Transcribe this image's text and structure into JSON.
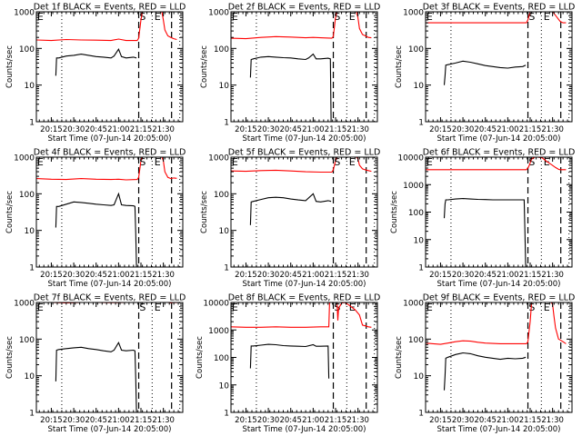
{
  "figure": {
    "ylabel": "Counts/sec",
    "xlabel": "Start Time (07-Jun-14 20:05:00)",
    "time_axis_minutes_from_start": [
      0,
      98
    ],
    "x_tick_labels": [
      "20:15",
      "20:30",
      "20:45",
      "21:00",
      "21:15",
      "21:30"
    ],
    "x_tick_minutes": [
      10,
      25,
      40,
      55,
      70,
      85
    ],
    "colors": {
      "events": "#000000",
      "lld": "#ff0000",
      "axes": "#000000"
    },
    "markers": {
      "dashed_minutes": [
        68.5,
        90.5
      ],
      "dotted_minutes": [
        17,
        77.5,
        96
      ],
      "labels": [
        {
          "text": "E",
          "minute": 0.5
        },
        {
          "text": "S",
          "minute": 69
        },
        {
          "text": "E",
          "minute": 79
        }
      ]
    }
  },
  "chart_data": [
    {
      "type": "line",
      "title": "Det 1f BLACK = Events, RED = LLD",
      "xlabel": "Start Time (07-Jun-14 20:05:00)",
      "ylabel": "Counts/sec",
      "yscale": "log",
      "ylim": [
        1,
        1000
      ],
      "y_tick_labels": [
        "1",
        "10",
        "100",
        "1000"
      ],
      "series": [
        {
          "name": "LLD",
          "color": "#ff0000",
          "x": [
            0,
            10,
            20,
            30,
            40,
            50,
            55,
            60,
            67.5,
            68.5,
            70,
            71,
            84,
            85,
            86,
            88,
            90,
            92,
            94
          ],
          "y": [
            170,
            165,
            175,
            170,
            168,
            165,
            180,
            165,
            165,
            190,
            600,
            2000,
            2000,
            600,
            320,
            220,
            200,
            185,
            175
          ]
        },
        {
          "name": "Events",
          "color": "#000000",
          "x": [
            13,
            13.5,
            15,
            20,
            25,
            30,
            35,
            40,
            45,
            50,
            52,
            55,
            57,
            60,
            65,
            67
          ],
          "y": [
            18,
            55,
            55,
            62,
            65,
            70,
            65,
            60,
            58,
            55,
            62,
            95,
            60,
            55,
            58,
            55
          ]
        }
      ]
    },
    {
      "type": "line",
      "title": "Det 2f BLACK = Events, RED = LLD",
      "xlabel": "Start Time (07-Jun-14 20:05:00)",
      "ylabel": "Counts/sec",
      "yscale": "log",
      "ylim": [
        1,
        1000
      ],
      "y_tick_labels": [
        "1",
        "10",
        "100",
        "1000"
      ],
      "series": [
        {
          "name": "LLD",
          "color": "#ff0000",
          "x": [
            0,
            10,
            20,
            30,
            40,
            50,
            55,
            60,
            67.5,
            68.5,
            70,
            71,
            84,
            85,
            86,
            88,
            90,
            92,
            94
          ],
          "y": [
            190,
            185,
            200,
            210,
            205,
            195,
            200,
            195,
            190,
            210,
            700,
            2000,
            2000,
            700,
            350,
            240,
            220,
            200,
            195
          ]
        },
        {
          "name": "Events",
          "color": "#000000",
          "x": [
            13,
            13.5,
            15,
            20,
            25,
            30,
            35,
            40,
            45,
            50,
            52,
            55,
            57,
            60,
            65,
            66.5,
            67
          ],
          "y": [
            16,
            50,
            52,
            58,
            60,
            58,
            56,
            55,
            52,
            50,
            55,
            70,
            52,
            52,
            54,
            52,
            1
          ]
        }
      ]
    },
    {
      "type": "line",
      "title": "Det 3f BLACK = Events, RED = LLD",
      "xlabel": "Start Time (07-Jun-14 20:05:00)",
      "ylabel": "Counts/sec",
      "yscale": "log",
      "ylim": [
        1,
        1000
      ],
      "y_tick_labels": [
        "1",
        "10",
        "100",
        "1000"
      ],
      "series": [
        {
          "name": "LLD",
          "color": "#ff0000",
          "x": [
            0,
            10,
            20,
            30,
            40,
            50,
            60,
            67.5,
            68.5,
            70,
            71,
            84,
            85,
            86,
            88,
            90,
            92,
            94
          ],
          "y": [
            500,
            500,
            500,
            500,
            500,
            500,
            500,
            500,
            600,
            1000,
            2000,
            2000,
            1200,
            900,
            700,
            550,
            500,
            500
          ]
        },
        {
          "name": "Events",
          "color": "#000000",
          "x": [
            12.5,
            13,
            13.5,
            15,
            20,
            25,
            30,
            35,
            40,
            45,
            50,
            55,
            60,
            65,
            67
          ],
          "y": [
            10,
            18,
            35,
            36,
            40,
            45,
            42,
            38,
            34,
            32,
            30,
            29,
            31,
            32,
            35
          ]
        }
      ]
    },
    {
      "type": "line",
      "title": "Det 4f BLACK = Events, RED = LLD",
      "xlabel": "Start Time (07-Jun-14 20:05:00)",
      "ylabel": "Counts/sec",
      "yscale": "log",
      "ylim": [
        1,
        1000
      ],
      "y_tick_labels": [
        "1",
        "10",
        "100",
        "1000"
      ],
      "series": [
        {
          "name": "LLD",
          "color": "#ff0000",
          "x": [
            0,
            10,
            20,
            30,
            40,
            50,
            55,
            60,
            67.5,
            68.5,
            70,
            71,
            84,
            85,
            86,
            88,
            90,
            92,
            94
          ],
          "y": [
            260,
            250,
            245,
            260,
            250,
            245,
            250,
            240,
            245,
            280,
            800,
            2000,
            2000,
            800,
            400,
            280,
            260,
            270,
            265
          ]
        },
        {
          "name": "Events",
          "color": "#000000",
          "x": [
            13,
            13.5,
            15,
            20,
            25,
            30,
            35,
            40,
            45,
            50,
            52,
            55,
            57,
            60,
            65,
            66,
            66.5,
            67
          ],
          "y": [
            12,
            45,
            45,
            52,
            60,
            58,
            55,
            52,
            50,
            48,
            50,
            100,
            50,
            48,
            47,
            45,
            8,
            1
          ]
        }
      ]
    },
    {
      "type": "line",
      "title": "Det 5f BLACK = Events, RED = LLD",
      "xlabel": "Start Time (07-Jun-14 20:05:00)",
      "ylabel": "Counts/sec",
      "yscale": "log",
      "ylim": [
        1,
        1000
      ],
      "y_tick_labels": [
        "1",
        "10",
        "100",
        "1000"
      ],
      "series": [
        {
          "name": "LLD",
          "color": "#ff0000",
          "x": [
            0,
            10,
            20,
            30,
            40,
            50,
            60,
            67.5,
            68.5,
            70,
            71,
            84,
            85,
            86,
            88,
            90,
            92,
            94
          ],
          "y": [
            420,
            410,
            430,
            440,
            420,
            400,
            390,
            390,
            450,
            800,
            2000,
            2000,
            900,
            600,
            480,
            450,
            430,
            410
          ]
        },
        {
          "name": "Events",
          "color": "#000000",
          "x": [
            13,
            13.5,
            15,
            20,
            25,
            30,
            35,
            40,
            45,
            50,
            55,
            57,
            60,
            65,
            67
          ],
          "y": [
            14,
            60,
            62,
            70,
            78,
            80,
            78,
            72,
            68,
            65,
            100,
            62,
            60,
            65,
            62
          ]
        }
      ]
    },
    {
      "type": "line",
      "title": "Det 6f BLACK = Events, RED = LLD",
      "xlabel": "Start Time (07-Jun-14 20:05:00)",
      "ylabel": "Counts/sec",
      "yscale": "log",
      "ylim": [
        1,
        10000
      ],
      "y_tick_labels": [
        "1",
        "10",
        "100",
        "1000",
        "10000"
      ],
      "series": [
        {
          "name": "LLD",
          "color": "#ff0000",
          "x": [
            0,
            10,
            20,
            30,
            40,
            50,
            60,
            67.5,
            69,
            71,
            73,
            75,
            78,
            81,
            84,
            87,
            89,
            90,
            94
          ],
          "y": [
            3500,
            3500,
            3500,
            3500,
            3500,
            3500,
            3500,
            3500,
            4500,
            8500,
            11000,
            11500,
            9500,
            7000,
            5500,
            4200,
            3600,
            3500,
            3500
          ]
        },
        {
          "name": "Events",
          "color": "#000000",
          "x": [
            12.5,
            13,
            13.5,
            15,
            20,
            25,
            30,
            35,
            40,
            45,
            50,
            55,
            60,
            65,
            66,
            66.5,
            67
          ],
          "y": [
            60,
            200,
            280,
            280,
            300,
            310,
            300,
            290,
            285,
            280,
            280,
            280,
            280,
            280,
            280,
            15,
            1
          ]
        }
      ]
    },
    {
      "type": "line",
      "title": "Det 7f BLACK = Events, RED = LLD",
      "xlabel": "Start Time (07-Jun-14 20:05:00)",
      "ylabel": "Counts/sec",
      "yscale": "log",
      "ylim": [
        1,
        1000
      ],
      "y_tick_labels": [
        "1",
        "10",
        "100",
        "1000"
      ],
      "series": [
        {
          "name": "LLD",
          "color": "#ff0000",
          "x": [
            0,
            10,
            20,
            30,
            40,
            50,
            60,
            67.5,
            88,
            90,
            92,
            94
          ],
          "y": [
            1000,
            1000,
            980,
            1000,
            1000,
            990,
            1000,
            1000,
            1000,
            980,
            1000,
            990
          ]
        },
        {
          "name": "Events",
          "color": "#000000",
          "x": [
            13,
            13.5,
            15,
            20,
            25,
            30,
            35,
            40,
            45,
            50,
            52,
            55,
            57,
            60,
            65,
            66,
            66.5,
            67
          ],
          "y": [
            7,
            50,
            52,
            55,
            58,
            60,
            55,
            52,
            48,
            45,
            50,
            80,
            50,
            48,
            50,
            48,
            8,
            1
          ]
        }
      ]
    },
    {
      "type": "line",
      "title": "Det 8f BLACK = Events, RED = LLD",
      "xlabel": "Start Time (07-Jun-14 20:05:00)",
      "ylabel": "Counts/sec",
      "yscale": "log",
      "ylim": [
        1,
        10000
      ],
      "y_tick_labels": [
        "1",
        "10",
        "100",
        "1000",
        "10000"
      ],
      "series": [
        {
          "name": "LLD",
          "color": "#ff0000",
          "x": [
            0,
            10,
            20,
            30,
            40,
            50,
            60,
            65.5,
            66,
            68,
            71,
            71.5,
            72,
            74,
            76,
            79,
            83,
            86,
            88,
            90,
            92,
            94
          ],
          "y": [
            1300,
            1250,
            1250,
            1300,
            1250,
            1250,
            1300,
            1300,
            12000,
            12000,
            12000,
            2200,
            6000,
            9500,
            10500,
            8000,
            5500,
            3500,
            1500,
            1400,
            1300,
            1250
          ]
        },
        {
          "name": "Events",
          "color": "#000000",
          "x": [
            13,
            13.5,
            15,
            20,
            25,
            30,
            35,
            40,
            45,
            50,
            55,
            57,
            60,
            65,
            65.5
          ],
          "y": [
            40,
            260,
            260,
            280,
            300,
            290,
            270,
            260,
            255,
            250,
            290,
            255,
            255,
            260,
            17
          ]
        }
      ]
    },
    {
      "type": "line",
      "title": "Det 9f BLACK = Events, RED = LLD",
      "xlabel": "Start Time (07-Jun-14 20:05:00)",
      "ylabel": "Counts/sec",
      "yscale": "log",
      "ylim": [
        1,
        1000
      ],
      "y_tick_labels": [
        "1",
        "10",
        "100",
        "1000"
      ],
      "series": [
        {
          "name": "LLD",
          "color": "#ff0000",
          "x": [
            0,
            5,
            10,
            15,
            20,
            25,
            30,
            35,
            40,
            50,
            60,
            67.5,
            68.5,
            70,
            71,
            84,
            85,
            86,
            87,
            89,
            90,
            92,
            94
          ],
          "y": [
            78,
            75,
            72,
            78,
            85,
            90,
            88,
            82,
            78,
            75,
            75,
            75,
            85,
            300,
            2000,
            2000,
            900,
            400,
            200,
            100,
            95,
            85,
            75
          ]
        },
        {
          "name": "Events",
          "color": "#000000",
          "x": [
            12.5,
            13,
            13.5,
            15,
            20,
            25,
            30,
            35,
            40,
            45,
            50,
            55,
            60,
            65,
            67
          ],
          "y": [
            4,
            10,
            30,
            32,
            38,
            42,
            40,
            35,
            32,
            30,
            28,
            30,
            29,
            30,
            32
          ]
        }
      ]
    }
  ]
}
